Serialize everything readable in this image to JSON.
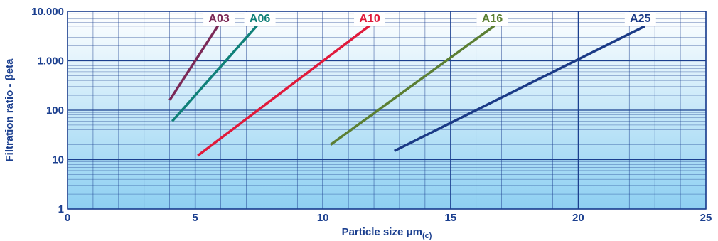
{
  "chart_data": {
    "type": "line",
    "xlabel": "Particle size μm",
    "xlabel_sub": "(c)",
    "ylabel": "Filtration ratio - βeta",
    "xlim": [
      0,
      25
    ],
    "ylim": [
      1,
      10000
    ],
    "y_scale": "log",
    "x_ticks": [
      0,
      5,
      10,
      15,
      20,
      25
    ],
    "x_tick_labels": [
      "0",
      "5",
      "10",
      "15",
      "20",
      "25"
    ],
    "y_ticks": [
      1,
      10,
      100,
      1000,
      10000
    ],
    "y_tick_labels": [
      "1",
      "10",
      "100",
      "1.000",
      "10.000"
    ],
    "grid": true,
    "colors": {
      "background_top": "#ffffff",
      "background_bottom": "#8ed0f2",
      "grid": "#1b3f8f",
      "axis_text": "#1b3f8f"
    },
    "series": [
      {
        "name": "A03",
        "color": "#7b2957",
        "x": [
          4.0,
          6.1
        ],
        "y": [
          160,
          7500
        ]
      },
      {
        "name": "A06",
        "color": "#0f8078",
        "x": [
          4.1,
          7.7
        ],
        "y": [
          60,
          7500
        ]
      },
      {
        "name": "A10",
        "color": "#e01a3b",
        "x": [
          5.1,
          12.0
        ],
        "y": [
          12,
          6000
        ]
      },
      {
        "name": "A16",
        "color": "#5b7f33",
        "x": [
          10.3,
          16.8
        ],
        "y": [
          20,
          5500
        ]
      },
      {
        "name": "A25",
        "color": "#1b3a86",
        "x": [
          12.8,
          22.6
        ],
        "y": [
          15,
          5000
        ]
      }
    ]
  }
}
